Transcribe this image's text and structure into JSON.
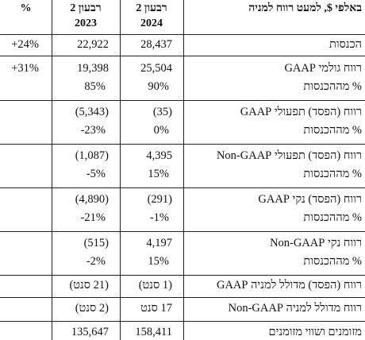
{
  "header": {
    "col_pct": "%",
    "col_q2_2023_line1": "רבעון 2",
    "col_q2_2023_line2": "2023",
    "col_q2_2024_line1": "רבעון 2",
    "col_q2_2024_line2": "2024",
    "col_label": "באלפי $, למעט רווח למניה"
  },
  "rows": {
    "revenue": {
      "label": "הכנסות",
      "v2024": "28,437",
      "v2023": "22,922",
      "pct": "+24%"
    },
    "gross": {
      "label": "רווח גולמי GAAP",
      "v2024": "25,504",
      "v2023": "19,398",
      "pct": "+31%",
      "sub_label": "% מההכנסות",
      "sub2024": "90%",
      "sub2023": "85%"
    },
    "op_gaap": {
      "label": "רווח (הפסד) תפעולי GAAP",
      "v2024": "(35)",
      "v2023": "(5,343)",
      "sub_label": "% מההכנסות",
      "sub2024": "0%",
      "sub2023": "-23%"
    },
    "op_nongaap": {
      "label": "רווח (הפסד) תפעולי Non-GAAP",
      "v2024": "4,395",
      "v2023": "(1,087)",
      "sub_label": "% מההכנסות",
      "sub2024": "15%",
      "sub2023": "-5%"
    },
    "net_gaap": {
      "label": "רווח (הפסד) נקי GAAP",
      "v2024": "(291)",
      "v2023": "(4,890)",
      "sub_label": "% מההכנסות",
      "sub2024": "-1%",
      "sub2023": "-21%"
    },
    "net_nongaap": {
      "label": "רווח נקי Non-GAAP",
      "v2024": "4,197",
      "v2023": "(515)",
      "sub_label": "% מההכנסות",
      "sub2024": "15%",
      "sub2023": "-2%"
    },
    "eps_gaap": {
      "label": "רווח (הפסד) מדולל למניה GAAP",
      "v2024": "(1 סנט)",
      "v2023": "(21 סנט)"
    },
    "eps_nongaap": {
      "label": "רווח מדולל למניה Non-GAAP",
      "v2024": "17 סנט",
      "v2023": "(2 סנט)"
    },
    "cash": {
      "label": "מזומנים ושווי מזומנים",
      "v2024": "158,411",
      "v2023": "135,647"
    }
  }
}
